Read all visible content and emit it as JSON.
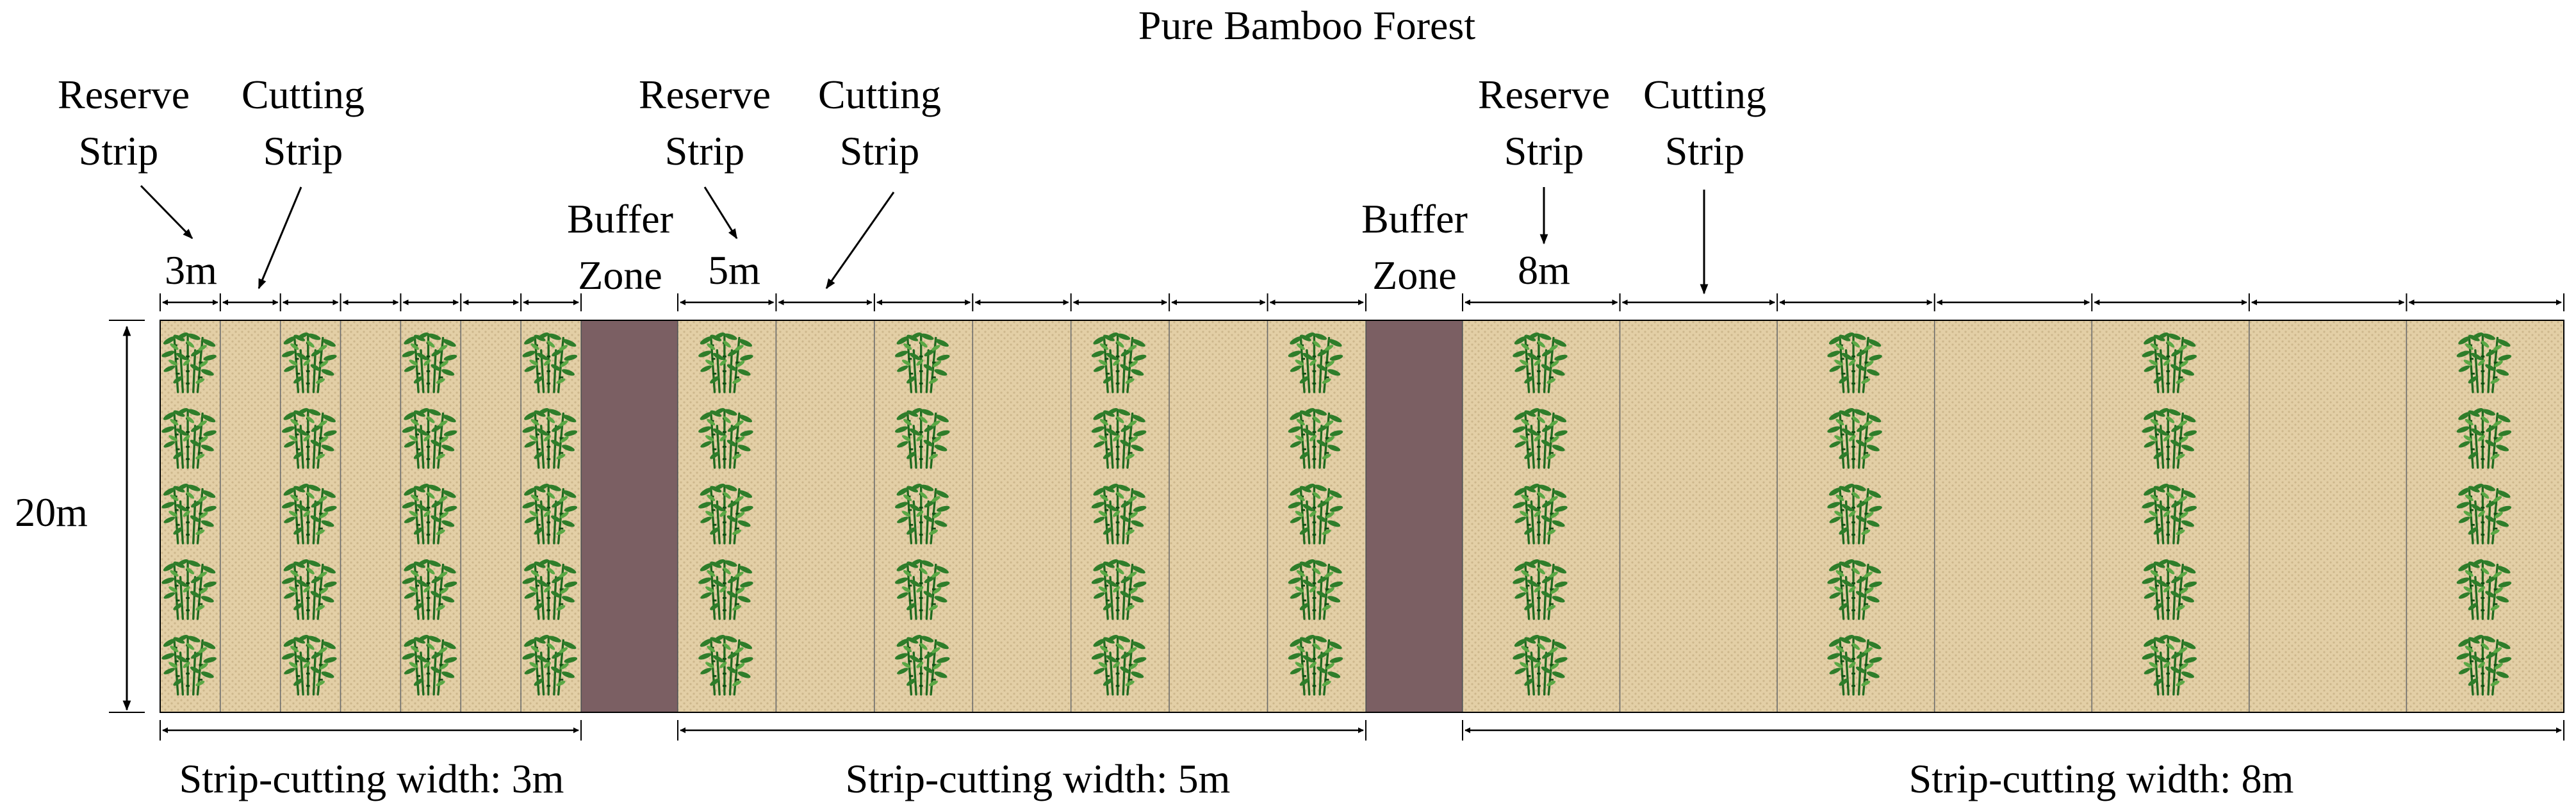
{
  "title": "Pure Bamboo Forest",
  "height_label": "20m",
  "colors": {
    "soil": "#e3cfa6",
    "soil_texture": "#cdb78c",
    "buffer": "#7b5f63",
    "bamboo_dark": "#1f6a1f",
    "bamboo_light": "#4e9c3a",
    "line": "#000000"
  },
  "icons": {
    "bamboo": "bamboo-clump-icon"
  },
  "sections": [
    {
      "reserve_label": "Reserve Strip",
      "cutting_label": "Cutting Strip",
      "reserve_width_label": "3m",
      "strip_width_m": 3,
      "strip_count": 7,
      "bottom_label": "Strip-cutting width: 3m"
    },
    {
      "buffer_label": "Buffer Zone",
      "reserve_label": "Reserve Strip",
      "cutting_label": "Cutting Strip",
      "reserve_width_label": "5m",
      "strip_width_m": 5,
      "strip_count": 7,
      "bottom_label": "Strip-cutting width: 5m"
    },
    {
      "buffer_label": "Buffer Zone",
      "reserve_label": "Reserve Strip",
      "cutting_label": "Cutting Strip",
      "reserve_width_label": "8m",
      "strip_width_m": 8,
      "strip_count": 7,
      "bottom_label": "Strip-cutting width: 8m"
    }
  ]
}
